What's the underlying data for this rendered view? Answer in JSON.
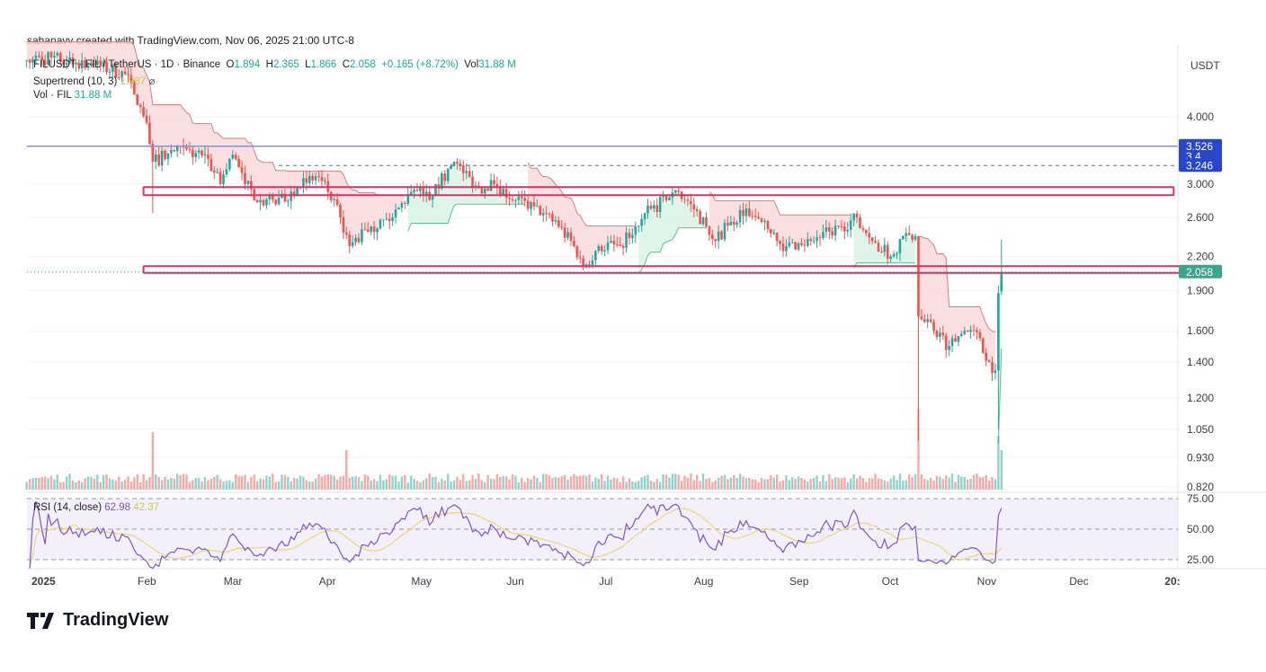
{
  "credit": "sahanavv created with TradingView.com, Nov 06, 2025 21:00 UTC-8",
  "legend": {
    "symbol": "FILUSDT · FIL / TetherUS · 1D · Binance",
    "open_label": "O",
    "open": "1.894",
    "high_label": "H",
    "high": "2.365",
    "low_label": "L",
    "low": "1.866",
    "close_label": "C",
    "close": "2.058",
    "change": "+0.165 (+8.72%)",
    "vol_label": "Vol",
    "vol": "31.88 M",
    "supertrend": "Supertrend (10, 3)",
    "supertrend_value": "1.987",
    "vol_ind": "Vol · FIL",
    "vol_ind_value": "31.88 M",
    "rsi": "RSI (14, close)",
    "rsi_value": "62.98",
    "rsi_ma_value": "42.37"
  },
  "logo": "TradingView",
  "colors": {
    "up": "#26a69a",
    "down": "#ef5350",
    "supertrend_down": "#f8d7d7",
    "rsi": "#7e57c2",
    "rsi_ma": "#e8d77a",
    "zone": "#d6336c",
    "line_label": "#2846c9",
    "price_label": "#3aa58f"
  },
  "chart_data": {
    "type": "candlestick",
    "symbol": "FILUSDT",
    "currency_label": "USDT",
    "y_scale": "log",
    "ylim": [
      0.82,
      5.3
    ],
    "y_ticks": [
      "4.000",
      "3.000",
      "2.600",
      "2.200",
      "1.900",
      "1.600",
      "1.400",
      "1.200",
      "1.050",
      "0.930",
      "0.820"
    ],
    "rsi_ticks": [
      "75.00",
      "50.00",
      "25.00"
    ],
    "x_ticks": [
      "2025",
      "Feb",
      "Mar",
      "Apr",
      "May",
      "Jun",
      "Jul",
      "Aug",
      "Sep",
      "Oct",
      "Nov",
      "Dec",
      "20:"
    ],
    "x_tick_dates": [
      "2025-01-01",
      "2025-02-01",
      "2025-03-01",
      "2025-04-01",
      "2025-05-01",
      "2025-06-01",
      "2025-07-01",
      "2025-08-01",
      "2025-09-01",
      "2025-10-01",
      "2025-11-01",
      "2025-12-01",
      "2026-01-01"
    ],
    "close_path": [
      [
        "2024-12-24",
        5.1
      ],
      [
        "2025-01-01",
        5.15
      ],
      [
        "2025-01-15",
        5.0
      ],
      [
        "2025-01-25",
        4.8
      ],
      [
        "2025-01-28",
        4.4
      ],
      [
        "2025-02-01",
        3.9
      ],
      [
        "2025-02-03",
        3.3
      ],
      [
        "2025-02-10",
        3.45
      ],
      [
        "2025-02-20",
        3.4
      ],
      [
        "2025-02-25",
        3.0
      ],
      [
        "2025-03-01",
        3.4
      ],
      [
        "2025-03-05",
        3.0
      ],
      [
        "2025-03-10",
        2.8
      ],
      [
        "2025-03-15",
        2.75
      ],
      [
        "2025-03-22",
        2.95
      ],
      [
        "2025-03-28",
        3.1
      ],
      [
        "2025-04-01",
        2.9
      ],
      [
        "2025-04-05",
        2.6
      ],
      [
        "2025-04-08",
        2.3
      ],
      [
        "2025-04-15",
        2.5
      ],
      [
        "2025-04-22",
        2.6
      ],
      [
        "2025-04-28",
        2.9
      ],
      [
        "2025-05-05",
        2.85
      ],
      [
        "2025-05-10",
        3.2
      ],
      [
        "2025-05-12",
        3.3
      ],
      [
        "2025-05-20",
        2.95
      ],
      [
        "2025-05-25",
        3.0
      ],
      [
        "2025-06-01",
        2.8
      ],
      [
        "2025-06-10",
        2.65
      ],
      [
        "2025-06-15",
        2.5
      ],
      [
        "2025-06-20",
        2.3
      ],
      [
        "2025-06-23",
        2.1
      ],
      [
        "2025-06-28",
        2.3
      ],
      [
        "2025-07-05",
        2.3
      ],
      [
        "2025-07-10",
        2.5
      ],
      [
        "2025-07-15",
        2.7
      ],
      [
        "2025-07-20",
        2.8
      ],
      [
        "2025-07-23",
        2.92
      ],
      [
        "2025-07-28",
        2.75
      ],
      [
        "2025-08-02",
        2.5
      ],
      [
        "2025-08-05",
        2.35
      ],
      [
        "2025-08-10",
        2.55
      ],
      [
        "2025-08-15",
        2.7
      ],
      [
        "2025-08-20",
        2.55
      ],
      [
        "2025-08-25",
        2.35
      ],
      [
        "2025-08-28",
        2.3
      ],
      [
        "2025-09-05",
        2.35
      ],
      [
        "2025-09-15",
        2.5
      ],
      [
        "2025-09-20",
        2.6
      ],
      [
        "2025-09-25",
        2.35
      ],
      [
        "2025-10-01",
        2.2
      ],
      [
        "2025-10-05",
        2.4
      ],
      [
        "2025-10-09",
        2.4
      ],
      [
        "2025-10-10",
        1.7
      ],
      [
        "2025-10-15",
        1.6
      ],
      [
        "2025-10-20",
        1.5
      ],
      [
        "2025-10-25",
        1.6
      ],
      [
        "2025-10-30",
        1.55
      ],
      [
        "2025-11-02",
        1.4
      ],
      [
        "2025-11-04",
        1.35
      ],
      [
        "2025-11-05",
        1.88
      ],
      [
        "2025-11-06",
        2.058
      ]
    ],
    "volume_spikes": [
      [
        "2025-02-03",
        3.2
      ],
      [
        "2025-04-07",
        2.2
      ],
      [
        "2025-10-10",
        4.5
      ],
      [
        "2025-11-05",
        3.0
      ],
      [
        "2025-11-06",
        2.2
      ]
    ],
    "horizontal_lines": [
      {
        "price": 3.526,
        "label": "3.526",
        "style": "solid"
      },
      {
        "price": 3.246,
        "label": "3.246",
        "style": "dashed"
      }
    ],
    "hidden_label": "3.4",
    "last_price": {
      "price": 2.058,
      "label": "2.058"
    },
    "zones": [
      {
        "top": 2.96,
        "bottom": 2.86,
        "start": "2025-01-31",
        "end": "2026-01-01"
      },
      {
        "top": 2.11,
        "bottom": 2.05,
        "start": "2025-01-31",
        "end": "2026-01-12"
      }
    ],
    "rsi_period": 14
  }
}
